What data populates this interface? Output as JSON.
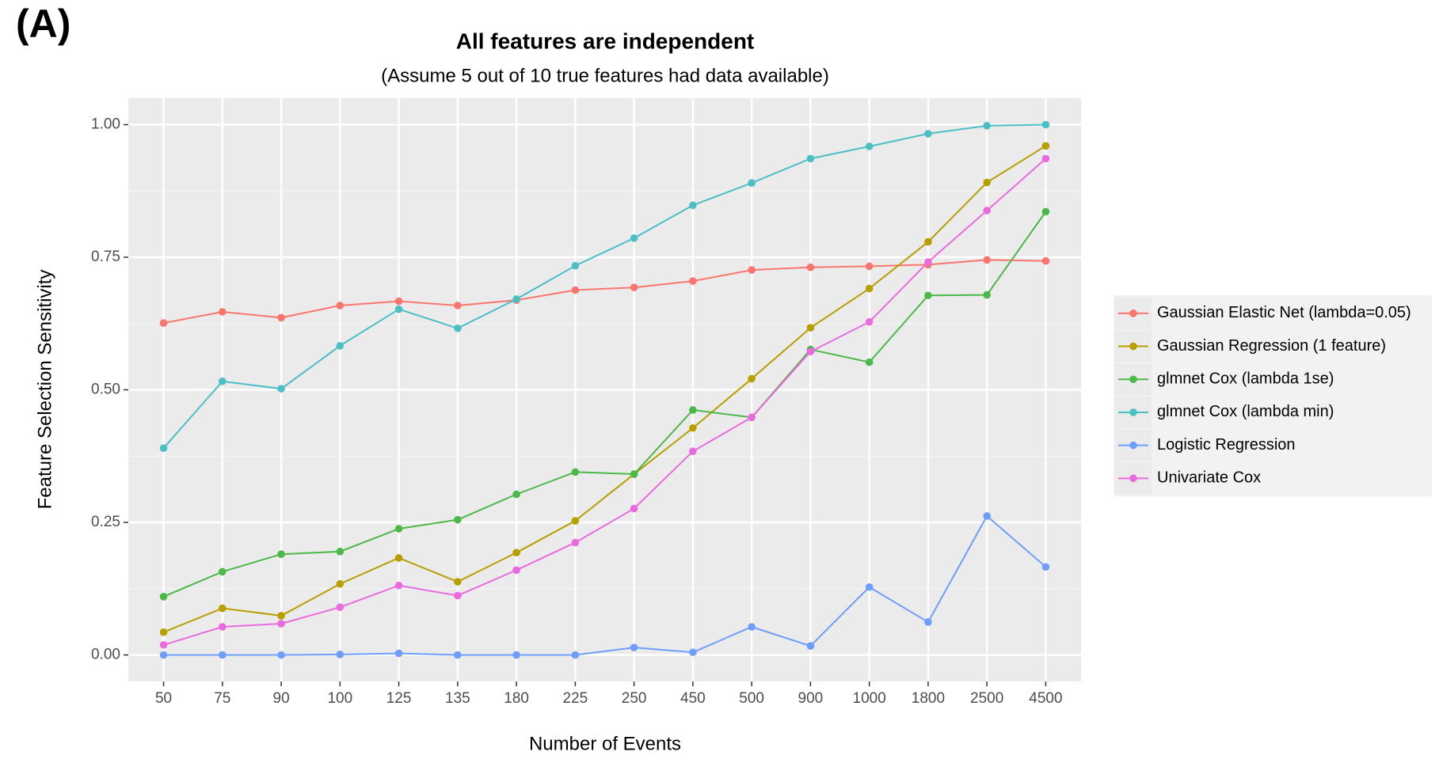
{
  "panel_label": "(A)",
  "chart_data": {
    "type": "line",
    "title": "All features are independent",
    "subtitle": "(Assume 5 out of 10 true features had data available)",
    "x_label": "Number of Events",
    "y_label": "Feature Selection Sensitivity",
    "categories": [
      "50",
      "75",
      "90",
      "100",
      "125",
      "135",
      "180",
      "225",
      "250",
      "450",
      "500",
      "900",
      "1000",
      "1800",
      "2500",
      "4500"
    ],
    "ylim": [
      -0.05,
      1.05
    ],
    "yticks": [
      {
        "value": 0,
        "label": "0.00"
      },
      {
        "value": 0.25,
        "label": "0.25"
      },
      {
        "value": 0.5,
        "label": "0.50"
      },
      {
        "value": 0.75,
        "label": "0.75"
      },
      {
        "value": 1,
        "label": "1.00"
      }
    ],
    "grid": true,
    "legend": "right",
    "series": [
      {
        "name": "Gaussian Elastic Net (lambda=0.05)",
        "color": "#F8766D",
        "values": [
          0.626,
          0.647,
          0.636,
          0.659,
          0.667,
          0.659,
          0.669,
          0.688,
          0.693,
          0.705,
          0.726,
          0.731,
          0.733,
          0.736,
          0.745,
          0.743
        ]
      },
      {
        "name": "Gaussian Regression (1 feature)",
        "color": "#B79F00",
        "values": [
          0.043,
          0.088,
          0.074,
          0.134,
          0.183,
          0.138,
          0.193,
          0.253,
          0.341,
          0.428,
          0.521,
          0.617,
          0.691,
          0.779,
          0.891,
          0.96
        ]
      },
      {
        "name": "glmnet Cox (lambda 1se)",
        "color": "#4CB848",
        "values": [
          0.11,
          0.157,
          0.19,
          0.195,
          0.238,
          0.255,
          0.303,
          0.345,
          0.341,
          0.462,
          0.448,
          0.576,
          0.552,
          0.678,
          0.679,
          0.836
        ]
      },
      {
        "name": "glmnet Cox (lambda min)",
        "color": "#4CBFC4",
        "values": [
          0.39,
          0.516,
          0.502,
          0.583,
          0.652,
          0.616,
          0.671,
          0.734,
          0.786,
          0.848,
          0.89,
          0.936,
          0.959,
          0.983,
          0.998,
          1.0
        ]
      },
      {
        "name": "Logistic Regression",
        "color": "#6E9EFA",
        "values": [
          0,
          0,
          0,
          0.001,
          0.003,
          0,
          0,
          0,
          0.014,
          0.005,
          0.053,
          0.017,
          0.128,
          0.062,
          0.262,
          0.166
        ]
      },
      {
        "name": "Univariate Cox",
        "color": "#EA6BDF",
        "values": [
          0.019,
          0.053,
          0.059,
          0.09,
          0.131,
          0.112,
          0.16,
          0.212,
          0.276,
          0.384,
          0.448,
          0.572,
          0.628,
          0.741,
          0.838,
          0.936
        ]
      }
    ]
  }
}
